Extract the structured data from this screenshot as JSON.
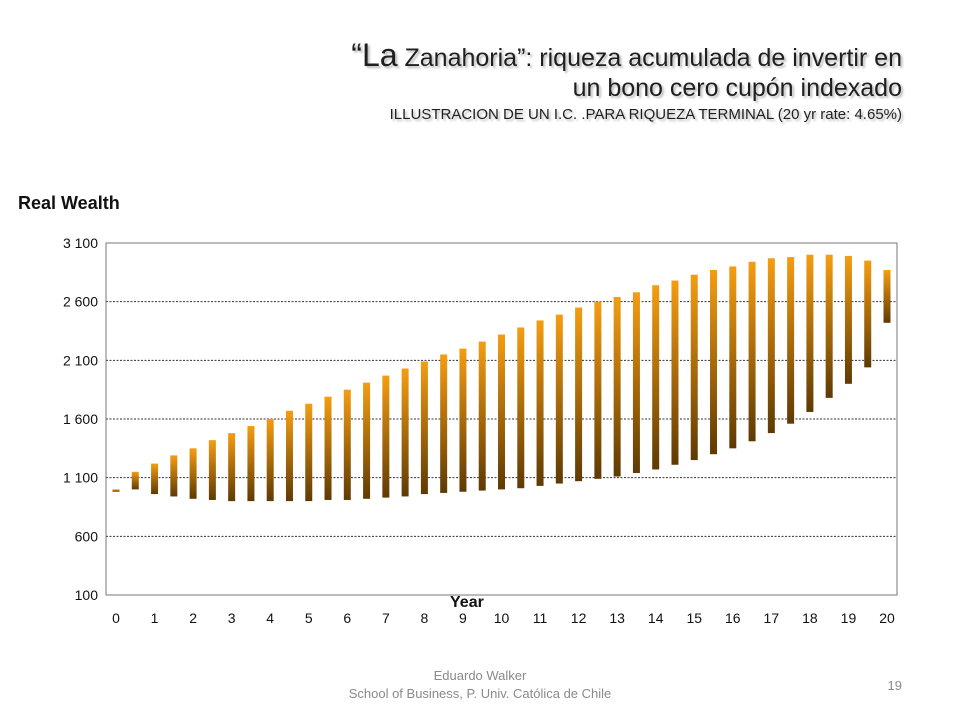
{
  "title": {
    "open_quote": "“",
    "la": "La",
    "line1_rest": " Zanahoria”: riqueza acumulada de invertir en",
    "line2": "un bono cero cupón indexado",
    "subtitle": "ILLUSTRACION DE UN I.C. .PARA RIQUEZA TERMINAL (20 yr rate: 4.65%)"
  },
  "footer": {
    "author": "Eduardo Walker",
    "affiliation": "School of Business, P. Univ. Católica de Chile",
    "page": "19"
  },
  "colors": {
    "bar_top": "#f59d12",
    "bar_bottom": "#5e3a03",
    "grid": "#333333"
  },
  "chart_data": {
    "type": "bar",
    "subtype": "floating-range",
    "ylabel": "Real Wealth",
    "xlabel": "Year",
    "ylim": [
      100,
      3100
    ],
    "yticks": [
      100,
      600,
      1100,
      1600,
      2100,
      2600,
      3100
    ],
    "ytick_labels": [
      "100",
      "600",
      "1 100",
      "1 600",
      "2 100",
      "2 600",
      "3 100"
    ],
    "grid": true,
    "x_tick_labels": [
      "0",
      "1",
      "2",
      "3",
      "4",
      "5",
      "6",
      "7",
      "8",
      "9",
      "10",
      "11",
      "12",
      "13",
      "14",
      "15",
      "16",
      "17",
      "18",
      "19",
      "20"
    ],
    "x": [
      0,
      0.5,
      1,
      1.5,
      2,
      2.5,
      3,
      3.5,
      4,
      4.5,
      5,
      5.5,
      6,
      6.5,
      7,
      7.5,
      8,
      8.5,
      9,
      9.5,
      10,
      10.5,
      11,
      11.5,
      12,
      12.5,
      13,
      13.5,
      14,
      14.5,
      15,
      15.5,
      16,
      16.5,
      17,
      17.5,
      18,
      18.5,
      19,
      19.5,
      20
    ],
    "high": [
      1000,
      1150,
      1220,
      1290,
      1350,
      1420,
      1480,
      1540,
      1600,
      1670,
      1730,
      1790,
      1850,
      1910,
      1970,
      2030,
      2090,
      2150,
      2200,
      2260,
      2320,
      2380,
      2440,
      2490,
      2550,
      2600,
      2640,
      2680,
      2740,
      2780,
      2830,
      2870,
      2900,
      2940,
      2970,
      2980,
      3000,
      3000,
      2990,
      2950,
      2870
    ],
    "low": [
      980,
      1000,
      960,
      940,
      920,
      910,
      900,
      900,
      900,
      900,
      900,
      910,
      910,
      920,
      930,
      940,
      960,
      970,
      980,
      990,
      1000,
      1010,
      1030,
      1050,
      1070,
      1090,
      1110,
      1140,
      1170,
      1210,
      1250,
      1300,
      1350,
      1410,
      1480,
      1560,
      1660,
      1780,
      1900,
      2040,
      2420
    ]
  }
}
